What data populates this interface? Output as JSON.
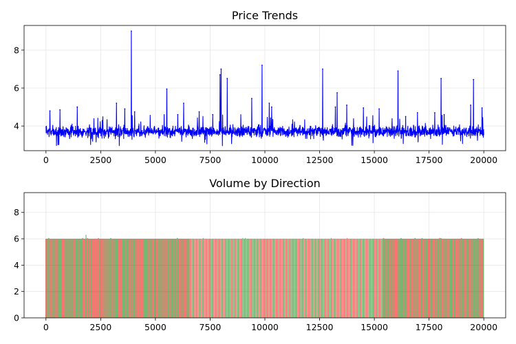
{
  "chart_data": [
    {
      "type": "line",
      "title": "Price Trends",
      "xlabel": "",
      "ylabel": "",
      "xlim": [
        -1000,
        21000
      ],
      "ylim": [
        2.7,
        9.3
      ],
      "xticks": [
        0,
        2500,
        5000,
        7500,
        10000,
        12500,
        15000,
        17500,
        20000
      ],
      "xtick_labels": [
        "0",
        "2500",
        "5000",
        "7500",
        "10000",
        "12500",
        "15000",
        "17500",
        "20000"
      ],
      "yticks": [
        4,
        6,
        8
      ],
      "ytick_labels": [
        "4",
        "6",
        "8"
      ],
      "grid": true,
      "color": "#0000ff",
      "baseline": 3.7,
      "noise_band": [
        3.3,
        4.1
      ],
      "x_range": [
        0,
        20000
      ],
      "spikes": [
        {
          "x": 180,
          "y": 4.8
        },
        {
          "x": 640,
          "y": 4.85
        },
        {
          "x": 1430,
          "y": 5.0
        },
        {
          "x": 3220,
          "y": 5.2
        },
        {
          "x": 3600,
          "y": 4.9
        },
        {
          "x": 3900,
          "y": 9.0
        },
        {
          "x": 4050,
          "y": 4.75
        },
        {
          "x": 5520,
          "y": 5.95
        },
        {
          "x": 6020,
          "y": 4.6
        },
        {
          "x": 6290,
          "y": 5.2
        },
        {
          "x": 7000,
          "y": 4.75
        },
        {
          "x": 7620,
          "y": 4.6
        },
        {
          "x": 7950,
          "y": 6.7
        },
        {
          "x": 8000,
          "y": 7.0
        },
        {
          "x": 8280,
          "y": 6.5
        },
        {
          "x": 9400,
          "y": 5.45
        },
        {
          "x": 9870,
          "y": 7.2
        },
        {
          "x": 10200,
          "y": 5.2
        },
        {
          "x": 10310,
          "y": 5.0
        },
        {
          "x": 12640,
          "y": 7.0
        },
        {
          "x": 13220,
          "y": 5.0
        },
        {
          "x": 13300,
          "y": 5.75
        },
        {
          "x": 13740,
          "y": 5.1
        },
        {
          "x": 14500,
          "y": 4.95
        },
        {
          "x": 15220,
          "y": 4.9
        },
        {
          "x": 16080,
          "y": 6.9
        },
        {
          "x": 16430,
          "y": 4.5
        },
        {
          "x": 16970,
          "y": 4.7
        },
        {
          "x": 17760,
          "y": 4.7
        },
        {
          "x": 18050,
          "y": 6.5
        },
        {
          "x": 18190,
          "y": 4.6
        },
        {
          "x": 19400,
          "y": 5.1
        },
        {
          "x": 19530,
          "y": 6.45
        },
        {
          "x": 19920,
          "y": 4.95
        }
      ]
    },
    {
      "type": "bar",
      "title": "Volume by Direction",
      "xlabel": "",
      "ylabel": "",
      "xlim": [
        -1000,
        21000
      ],
      "ylim": [
        0,
        9.5
      ],
      "xticks": [
        0,
        2500,
        5000,
        7500,
        10000,
        12500,
        15000,
        17500,
        20000
      ],
      "xtick_labels": [
        "0",
        "2500",
        "5000",
        "7500",
        "10000",
        "12500",
        "15000",
        "17500",
        "20000"
      ],
      "yticks": [
        0,
        2,
        4,
        6,
        8
      ],
      "ytick_labels": [
        "0",
        "2",
        "4",
        "6",
        "8"
      ],
      "grid": true,
      "bar_height": 6.0,
      "series": [
        {
          "color": "#ff0000"
        },
        {
          "color": "#008000"
        }
      ],
      "segments": [
        {
          "x": [
            0,
            650
          ],
          "pattern": "alternating"
        },
        {
          "x": [
            650,
            2500
          ],
          "pattern": "mixed-red-green"
        },
        {
          "x": [
            2500,
            6550
          ],
          "pattern": "dense"
        },
        {
          "x": [
            6550,
            15400
          ],
          "pattern": "sparse"
        },
        {
          "x": [
            15400,
            20000
          ],
          "pattern": "dense"
        }
      ],
      "outlier": {
        "x": 1830,
        "y": 6.3
      }
    }
  ]
}
